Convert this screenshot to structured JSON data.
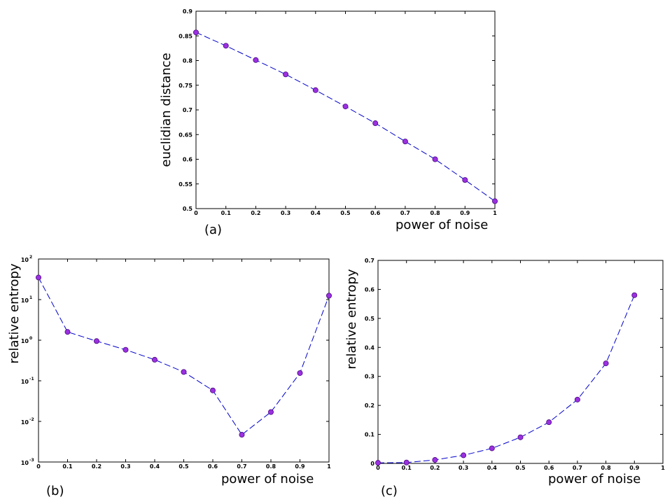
{
  "chart_data": [
    {
      "type": "line",
      "panel": "(a)",
      "xlabel": "power of noise",
      "ylabel": "euclidian distance",
      "xlim": [
        0,
        1
      ],
      "ylim": [
        0.5,
        0.9
      ],
      "yscale": "linear",
      "xticks": [
        "0",
        "0.1",
        "0.2",
        "0.3",
        "0.4",
        "0.5",
        "0.6",
        "0.7",
        "0.8",
        "0.9",
        "1"
      ],
      "yticks": [
        "0.5",
        "0.55",
        "0.6",
        "0.65",
        "0.7",
        "0.75",
        "0.8",
        "0.85",
        "0.9"
      ],
      "series": [
        {
          "x": [
            0,
            0.1,
            0.2,
            0.3,
            0.4,
            0.5,
            0.6,
            0.7,
            0.8,
            0.9,
            1
          ],
          "y": [
            0.857,
            0.83,
            0.801,
            0.772,
            0.74,
            0.707,
            0.673,
            0.636,
            0.6,
            0.558,
            0.515
          ],
          "line_color": "#0000cc",
          "marker_color": "#9b30e0"
        }
      ]
    },
    {
      "type": "line",
      "panel": "(b)",
      "xlabel": "power of noise",
      "ylabel": "relative entropy",
      "xlim": [
        0,
        1
      ],
      "ylim": [
        0.001,
        100
      ],
      "yscale": "log",
      "xticks": [
        "0",
        "0.1",
        "0.2",
        "0.3",
        "0.4",
        "0.5",
        "0.6",
        "0.7",
        "0.8",
        "0.9",
        "1"
      ],
      "yticks": [
        {
          "base": "10",
          "exp": "-3"
        },
        {
          "base": "10",
          "exp": "-2"
        },
        {
          "base": "10",
          "exp": "-1"
        },
        {
          "base": "10",
          "exp": "0"
        },
        {
          "base": "10",
          "exp": "1"
        },
        {
          "base": "10",
          "exp": "2"
        }
      ],
      "series": [
        {
          "x": [
            0,
            0.1,
            0.2,
            0.3,
            0.4,
            0.5,
            0.6,
            0.7,
            0.8,
            0.9,
            1
          ],
          "y": [
            35,
            1.6,
            0.95,
            0.58,
            0.33,
            0.165,
            0.058,
            0.0047,
            0.017,
            0.155,
            12.5
          ],
          "line_color": "#0000cc",
          "marker_color": "#9b30e0"
        }
      ]
    },
    {
      "type": "line",
      "panel": "(c)",
      "xlabel": "power of noise",
      "ylabel": "relative entropy",
      "xlim": [
        0,
        1
      ],
      "ylim": [
        0,
        0.7
      ],
      "yscale": "linear",
      "xticks": [
        "0",
        "0.1",
        "0.2",
        "0.3",
        "0.4",
        "0.5",
        "0.6",
        "0.7",
        "0.8",
        "0.9",
        "1"
      ],
      "yticks": [
        "0",
        "0.1",
        "0.2",
        "0.3",
        "0.4",
        "0.5",
        "0.6",
        "0.7"
      ],
      "series": [
        {
          "x": [
            0,
            0.1,
            0.2,
            0.3,
            0.4,
            0.5,
            0.6,
            0.7,
            0.8,
            0.9
          ],
          "y": [
            0.002,
            0.003,
            0.012,
            0.028,
            0.052,
            0.09,
            0.142,
            0.22,
            0.345,
            0.58
          ],
          "line_color": "#0000cc",
          "marker_color": "#9b30e0"
        }
      ]
    }
  ]
}
